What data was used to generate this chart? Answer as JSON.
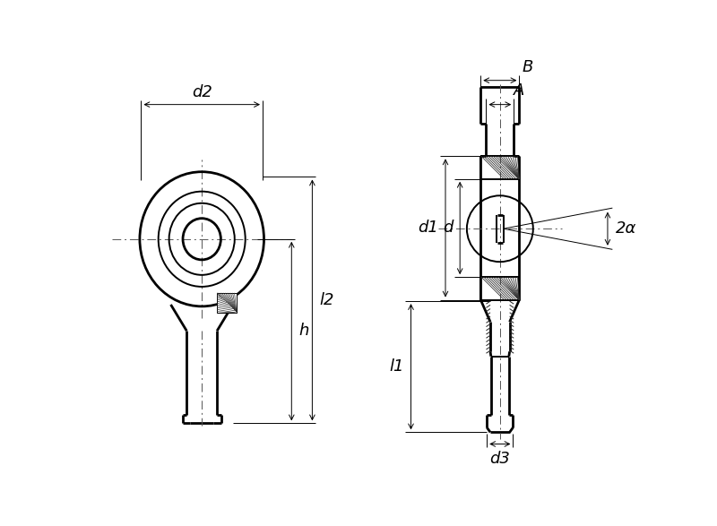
{
  "bg_color": "#ffffff",
  "line_color": "#000000",
  "thin_lw": 0.7,
  "medium_lw": 1.4,
  "thick_lw": 2.0,
  "dim_labels": {
    "d2": "d2",
    "l2": "l2",
    "h": "h",
    "d1": "d1",
    "d": "d",
    "A": "A",
    "B": "B",
    "l1": "l1",
    "d3": "d3",
    "alpha": "2α"
  },
  "font_size": 13
}
